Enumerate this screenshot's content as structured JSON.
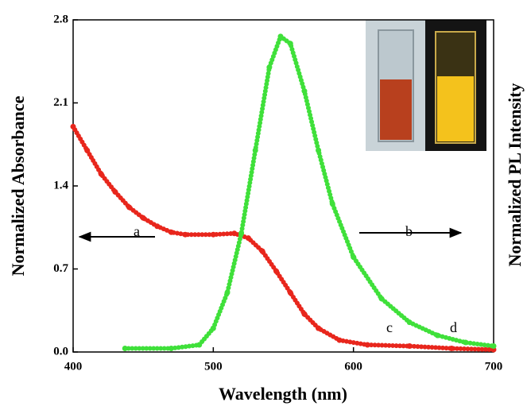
{
  "chart_data": {
    "type": "scatter-line",
    "xlabel": "Wavelength (nm)",
    "ylabel": "Normalized Absorbance",
    "y2label": "Normalized PL Intensity",
    "xlim": [
      400,
      700
    ],
    "xticks": [
      400,
      500,
      600,
      700
    ],
    "ylim": [
      0,
      2.8
    ],
    "yticks": [
      {
        "value": 0,
        "label": "0.0"
      },
      0.7,
      1.4,
      2.1,
      2.8
    ],
    "series": [
      {
        "name": "a",
        "color": "#e8261c",
        "x": [
          400,
          410,
          420,
          430,
          440,
          450,
          460,
          470,
          480,
          500,
          515,
          525,
          535,
          545,
          555,
          565,
          575,
          590,
          610,
          640,
          670,
          700
        ],
        "values": [
          1.9,
          1.7,
          1.5,
          1.35,
          1.22,
          1.13,
          1.06,
          1.01,
          0.99,
          0.99,
          1.0,
          0.96,
          0.85,
          0.68,
          0.5,
          0.32,
          0.2,
          0.1,
          0.06,
          0.05,
          0.03,
          0.02
        ]
      },
      {
        "name": "b",
        "color": "#3fe03a",
        "x": [
          437,
          470,
          490,
          500,
          510,
          520,
          530,
          540,
          548,
          555,
          565,
          575,
          585,
          600,
          620,
          640,
          660,
          680,
          700
        ],
        "values": [
          0.03,
          0.03,
          0.06,
          0.2,
          0.5,
          1.0,
          1.7,
          2.4,
          2.66,
          2.6,
          2.2,
          1.7,
          1.25,
          0.8,
          0.45,
          0.25,
          0.14,
          0.08,
          0.05
        ]
      }
    ],
    "inset_labels": [
      "c",
      "d"
    ]
  }
}
